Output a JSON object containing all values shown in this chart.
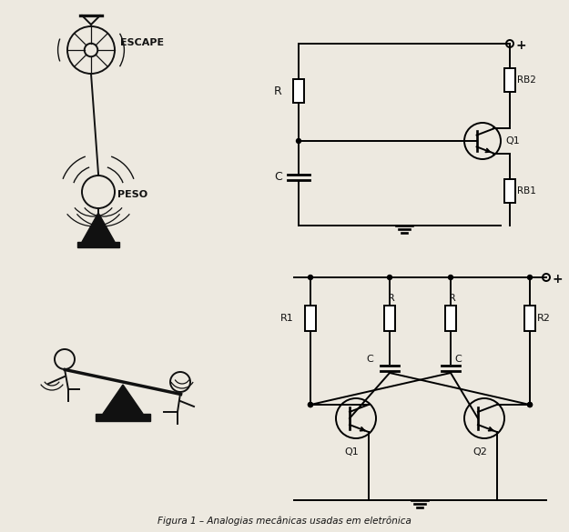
{
  "background_color": "#ede9e0",
  "fig_width": 6.25,
  "fig_height": 5.85,
  "title": "Figura 1 – Analogias mecânicas usadas em eletrônica",
  "line_color": "#111111",
  "text_color": "#111111",
  "mech1_labels": {
    "escape": "ESCAPE",
    "peso": "PESO"
  },
  "circuit1_labels": {
    "R": "R",
    "C": "C",
    "RB2": "RB2",
    "RB1": "RB1",
    "Q1": "Q1",
    "plus": "+"
  },
  "circuit2_labels": {
    "R1": "R1",
    "R2": "R2",
    "R": "R",
    "C": "C",
    "Q1": "Q1",
    "Q2": "Q2",
    "plus": "+"
  }
}
